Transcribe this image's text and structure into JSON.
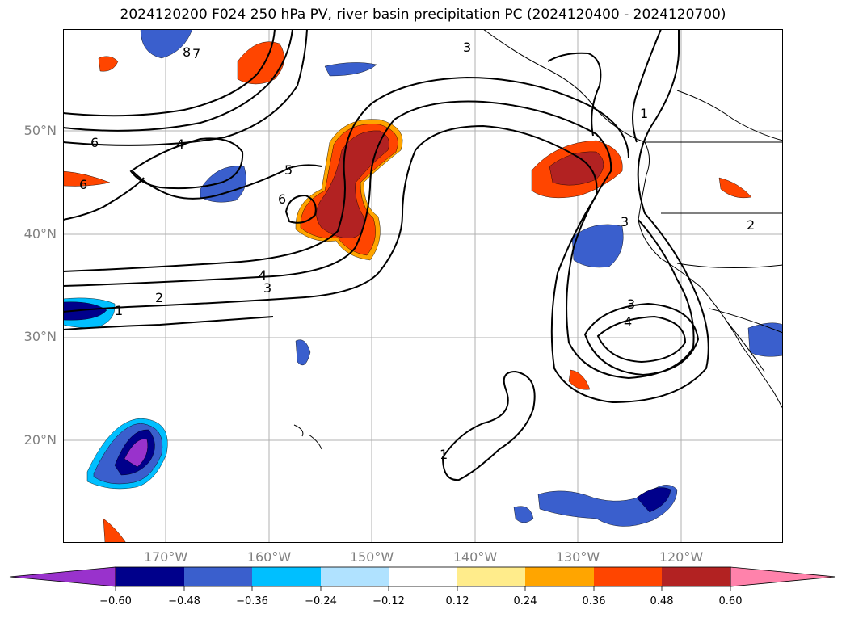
{
  "title": "2024120200 F024 250 hPa PV, river basin precipitation PC (2024120400 - 2024120700)",
  "lat_labels": [
    "50°N",
    "40°N",
    "30°N",
    "20°N"
  ],
  "lon_labels": [
    "170°W",
    "160°W",
    "150°W",
    "140°W",
    "130°W",
    "120°W"
  ],
  "contour_labels": [
    "3",
    "8",
    "7",
    "6",
    "4",
    "5",
    "6",
    "6",
    "1",
    "2",
    "4",
    "3",
    "1",
    "3",
    "4",
    "3",
    "2",
    "1"
  ],
  "colorbar": {
    "ticks": [
      "−0.60",
      "−0.48",
      "−0.36",
      "−0.24",
      "−0.12",
      "0.12",
      "0.24",
      "0.36",
      "0.48",
      "0.60"
    ],
    "colors": {
      "lt_neg060": "#9932cc",
      "neg060_neg048": "#00008b",
      "neg048_neg036": "#3a5fcd",
      "neg036_neg024": "#00bfff",
      "neg024_neg012": "#b0e2ff",
      "neg012_012": "#ffffff",
      "p012_p024": "#ffec8b",
      "p024_p036": "#ffa500",
      "p036_p048": "#ff4500",
      "p048_p060": "#b22222",
      "gt_p060": "#ff82ab"
    }
  }
}
